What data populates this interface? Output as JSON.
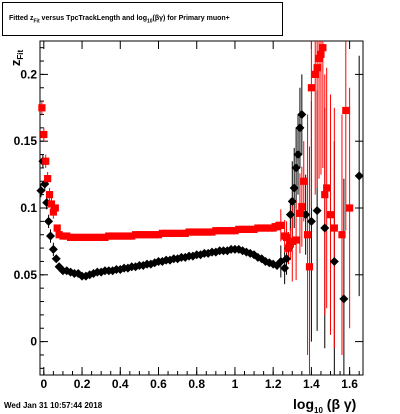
{
  "title": {
    "prefix": "Fitted  z",
    "sub1": "Fit",
    "middle": " versus TpcTrackLength and log",
    "sub2": "10",
    "suffix": "(βγ) for Primary muon+"
  },
  "timestamp": "Wed Jan 31 10:57:44 2018",
  "axis_labels": {
    "x_main": "log",
    "x_sub": "10",
    "x_tail": " (β γ)",
    "y_main": "z",
    "y_sub": "Fit"
  },
  "colors": {
    "black_series": "#000000",
    "red_series": "#ff0000",
    "frame": "#000000"
  },
  "chart_data": {
    "type": "scatter",
    "xlim": [
      -0.02,
      1.67
    ],
    "ylim": [
      -0.025,
      0.225
    ],
    "xticks": [
      0,
      0.2,
      0.4,
      0.6,
      0.8,
      1,
      1.2,
      1.4,
      1.6
    ],
    "xtick_labels": [
      "0",
      "0.2",
      "0.4",
      "0.6",
      "0.8",
      "1",
      "1.2",
      "1.4",
      "1.6"
    ],
    "yticks": [
      0,
      0.05,
      0.1,
      0.15,
      0.2
    ],
    "ytick_labels": [
      "0",
      "0.05",
      "0.1",
      "0.15",
      "0.2"
    ],
    "grid": false,
    "series": [
      {
        "color": "#000000",
        "marker": "diamond",
        "points": [
          [
            -0.015,
            0.113
          ],
          [
            -0.005,
            0.135
          ],
          [
            0.005,
            0.118
          ],
          [
            0.015,
            0.104
          ],
          [
            0.025,
            0.09
          ],
          [
            0.035,
            0.079
          ],
          [
            0.05,
            0.069
          ],
          [
            0.065,
            0.062
          ],
          [
            0.08,
            0.056
          ],
          [
            0.1,
            0.053
          ],
          [
            0.12,
            0.053
          ],
          [
            0.14,
            0.052
          ],
          [
            0.16,
            0.051
          ],
          [
            0.18,
            0.051
          ],
          [
            0.2,
            0.049
          ],
          [
            0.22,
            0.049
          ],
          [
            0.24,
            0.05
          ],
          [
            0.26,
            0.051
          ],
          [
            0.28,
            0.052
          ],
          [
            0.3,
            0.052
          ],
          [
            0.32,
            0.053
          ],
          [
            0.34,
            0.053
          ],
          [
            0.36,
            0.053
          ],
          [
            0.38,
            0.054
          ],
          [
            0.4,
            0.054
          ],
          [
            0.42,
            0.055
          ],
          [
            0.44,
            0.055
          ],
          [
            0.46,
            0.056
          ],
          [
            0.48,
            0.056
          ],
          [
            0.5,
            0.057
          ],
          [
            0.52,
            0.057
          ],
          [
            0.54,
            0.058
          ],
          [
            0.56,
            0.058
          ],
          [
            0.58,
            0.059
          ],
          [
            0.6,
            0.06
          ],
          [
            0.62,
            0.06
          ],
          [
            0.64,
            0.061
          ],
          [
            0.66,
            0.061
          ],
          [
            0.68,
            0.062
          ],
          [
            0.7,
            0.062
          ],
          [
            0.72,
            0.063
          ],
          [
            0.74,
            0.063
          ],
          [
            0.76,
            0.064
          ],
          [
            0.78,
            0.064
          ],
          [
            0.8,
            0.065
          ],
          [
            0.82,
            0.065
          ],
          [
            0.84,
            0.066
          ],
          [
            0.86,
            0.066
          ],
          [
            0.88,
            0.067
          ],
          [
            0.9,
            0.067
          ],
          [
            0.92,
            0.068
          ],
          [
            0.94,
            0.068
          ],
          [
            0.96,
            0.068
          ],
          [
            0.98,
            0.069
          ],
          [
            1.0,
            0.069
          ],
          [
            1.02,
            0.069
          ],
          [
            1.04,
            0.068
          ],
          [
            1.06,
            0.067
          ],
          [
            1.08,
            0.066
          ],
          [
            1.1,
            0.065
          ],
          [
            1.12,
            0.063
          ],
          [
            1.14,
            0.062
          ],
          [
            1.16,
            0.06
          ],
          [
            1.18,
            0.059
          ],
          [
            1.2,
            0.058
          ],
          [
            1.22,
            0.057
          ],
          [
            1.24,
            0.06
          ],
          [
            1.26,
            0.055
          ],
          [
            1.27,
            0.062
          ],
          [
            1.28,
            0.07
          ],
          [
            1.29,
            0.095
          ],
          [
            1.3,
            0.105
          ],
          [
            1.31,
            0.115
          ],
          [
            1.32,
            0.13
          ],
          [
            1.33,
            0.14
          ],
          [
            1.34,
            0.16
          ],
          [
            1.35,
            0.17
          ],
          [
            1.37,
            0.095
          ],
          [
            1.4,
            0.09
          ],
          [
            1.43,
            0.098
          ],
          [
            1.47,
            0.085
          ],
          [
            1.52,
            0.06
          ],
          [
            1.57,
            0.032
          ],
          [
            1.65,
            0.124
          ]
        ]
      },
      {
        "color": "#ff0000",
        "marker": "square",
        "points": [
          [
            -0.01,
            0.175
          ],
          [
            0.0,
            0.155
          ],
          [
            0.01,
            0.135
          ],
          [
            0.02,
            0.122
          ],
          [
            0.03,
            0.11
          ],
          [
            0.04,
            0.103
          ],
          [
            0.05,
            0.097
          ],
          [
            0.06,
            0.1
          ],
          [
            0.07,
            0.085
          ],
          [
            0.08,
            0.08
          ],
          [
            0.1,
            0.079
          ],
          [
            0.12,
            0.079
          ],
          [
            0.14,
            0.078
          ],
          [
            0.16,
            0.078
          ],
          [
            0.18,
            0.078
          ],
          [
            0.2,
            0.078
          ],
          [
            0.22,
            0.078
          ],
          [
            0.24,
            0.078
          ],
          [
            0.26,
            0.078
          ],
          [
            0.28,
            0.078
          ],
          [
            0.3,
            0.078
          ],
          [
            0.32,
            0.078
          ],
          [
            0.34,
            0.079
          ],
          [
            0.36,
            0.079
          ],
          [
            0.38,
            0.079
          ],
          [
            0.4,
            0.079
          ],
          [
            0.42,
            0.079
          ],
          [
            0.44,
            0.079
          ],
          [
            0.46,
            0.079
          ],
          [
            0.48,
            0.08
          ],
          [
            0.5,
            0.08
          ],
          [
            0.52,
            0.08
          ],
          [
            0.54,
            0.08
          ],
          [
            0.56,
            0.08
          ],
          [
            0.58,
            0.08
          ],
          [
            0.6,
            0.08
          ],
          [
            0.62,
            0.081
          ],
          [
            0.64,
            0.081
          ],
          [
            0.66,
            0.081
          ],
          [
            0.68,
            0.081
          ],
          [
            0.7,
            0.081
          ],
          [
            0.72,
            0.081
          ],
          [
            0.74,
            0.081
          ],
          [
            0.76,
            0.082
          ],
          [
            0.78,
            0.082
          ],
          [
            0.8,
            0.082
          ],
          [
            0.82,
            0.082
          ],
          [
            0.84,
            0.082
          ],
          [
            0.86,
            0.082
          ],
          [
            0.88,
            0.082
          ],
          [
            0.9,
            0.083
          ],
          [
            0.92,
            0.083
          ],
          [
            0.94,
            0.083
          ],
          [
            0.96,
            0.083
          ],
          [
            0.98,
            0.083
          ],
          [
            1.0,
            0.083
          ],
          [
            1.02,
            0.084
          ],
          [
            1.04,
            0.084
          ],
          [
            1.06,
            0.084
          ],
          [
            1.08,
            0.084
          ],
          [
            1.1,
            0.084
          ],
          [
            1.12,
            0.085
          ],
          [
            1.14,
            0.085
          ],
          [
            1.16,
            0.085
          ],
          [
            1.18,
            0.085
          ],
          [
            1.2,
            0.085
          ],
          [
            1.21,
            0.086
          ],
          [
            1.22,
            0.086
          ],
          [
            1.23,
            0.087
          ],
          [
            1.24,
            0.087
          ],
          [
            1.26,
            0.079
          ],
          [
            1.27,
            0.078
          ],
          [
            1.28,
            0.07
          ],
          [
            1.29,
            0.073
          ],
          [
            1.3,
            0.075
          ],
          [
            1.32,
            0.076
          ],
          [
            1.34,
            0.096
          ],
          [
            1.35,
            0.101
          ],
          [
            1.36,
            0.12
          ],
          [
            1.38,
            0.08
          ],
          [
            1.39,
            0.056
          ],
          [
            1.4,
            0.19
          ],
          [
            1.42,
            0.2
          ],
          [
            1.43,
            0.205
          ],
          [
            1.44,
            0.212
          ],
          [
            1.45,
            0.215
          ],
          [
            1.46,
            0.22
          ],
          [
            1.47,
            0.11
          ],
          [
            1.48,
            0.115
          ],
          [
            1.5,
            0.095
          ],
          [
            1.52,
            0.085
          ],
          [
            1.56,
            0.08
          ],
          [
            1.58,
            0.173
          ],
          [
            1.6,
            0.1
          ]
        ]
      }
    ]
  }
}
